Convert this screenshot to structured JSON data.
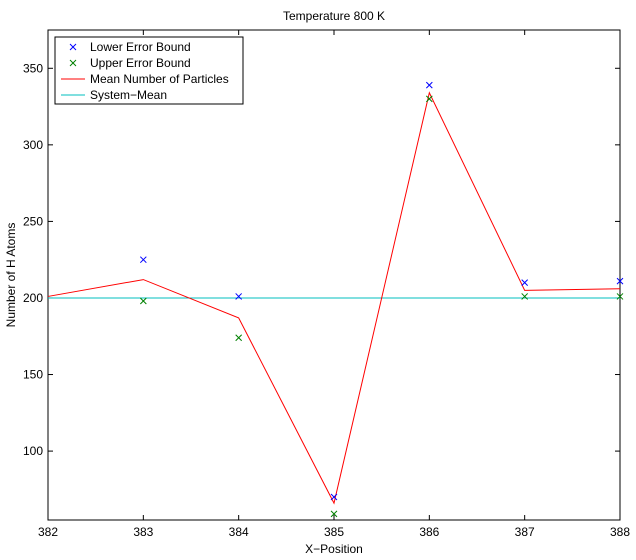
{
  "chart_data": {
    "type": "line",
    "title": "Temperature 800 K",
    "xlabel": "X−Position",
    "ylabel": "Number of H Atoms",
    "xlim": [
      382,
      388
    ],
    "ylim": [
      55,
      375
    ],
    "xticks": [
      382,
      383,
      384,
      385,
      386,
      387,
      388
    ],
    "yticks": [
      100,
      150,
      200,
      250,
      300,
      350
    ],
    "legend_position": "top-left",
    "grid": false,
    "series": [
      {
        "name": "Lower Error Bound",
        "kind": "marker",
        "marker": "x",
        "color": "#0000ff",
        "x": [
          383,
          384,
          385,
          386,
          387,
          388
        ],
        "y": [
          225,
          201,
          70,
          339,
          210,
          211
        ]
      },
      {
        "name": "Upper Error Bound",
        "kind": "marker",
        "marker": "x",
        "color": "#008000",
        "x": [
          383,
          384,
          385,
          386,
          387,
          388
        ],
        "y": [
          198,
          174,
          59,
          330,
          201,
          201
        ]
      },
      {
        "name": "Mean Number of Particles",
        "kind": "line",
        "color": "#ff0000",
        "x": [
          382,
          383,
          384,
          385,
          386,
          387,
          388
        ],
        "y": [
          201,
          212,
          187,
          66,
          334,
          205,
          206
        ]
      },
      {
        "name": "System−Mean",
        "kind": "line",
        "color": "#00bfbf",
        "x": [
          382,
          388
        ],
        "y": [
          200,
          200
        ]
      }
    ]
  }
}
